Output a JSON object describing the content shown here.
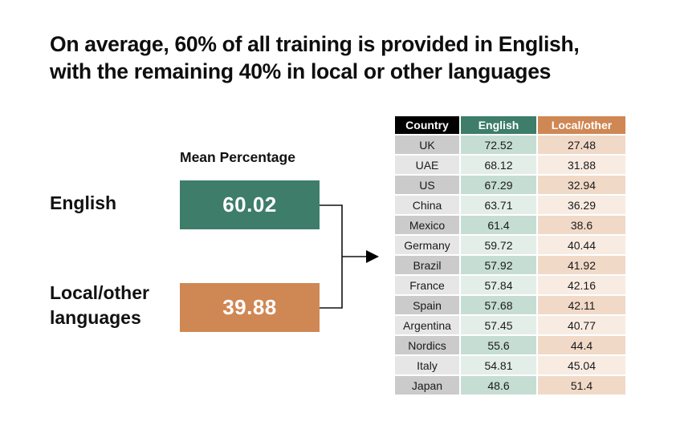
{
  "title": {
    "line1": "On average, 60% of all training is provided in English,",
    "line2": "with the remaining 40% in local or other languages"
  },
  "summary": {
    "header": "Mean Percentage",
    "rows": [
      {
        "label_lines": [
          "English"
        ],
        "value": "60.02",
        "color": "#3d7d6a"
      },
      {
        "label_lines": [
          "Local/other",
          "languages"
        ],
        "value": "39.88",
        "color": "#cf8754"
      }
    ],
    "connector_icon": "arrow-right-icon"
  },
  "table": {
    "columns": [
      {
        "label": "Country",
        "header_color": "#000000"
      },
      {
        "label": "English",
        "header_color": "#3d7d6a"
      },
      {
        "label": "Local/other",
        "header_color": "#cf8754"
      }
    ],
    "row_colors": {
      "country_dark": "#cbcbcb",
      "country_light": "#e6e6e6",
      "english_dark": "#c6ddd4",
      "english_light": "#e3eee9",
      "local_dark": "#f1d9c8",
      "local_light": "#f8ebe2"
    },
    "rows": [
      {
        "country": "UK",
        "english": "72.52",
        "local": "27.48"
      },
      {
        "country": "UAE",
        "english": "68.12",
        "local": "31.88"
      },
      {
        "country": "US",
        "english": "67.29",
        "local": "32.94"
      },
      {
        "country": "China",
        "english": "63.71",
        "local": "36.29"
      },
      {
        "country": "Mexico",
        "english": "61.4",
        "local": "38.6"
      },
      {
        "country": "Germany",
        "english": "59.72",
        "local": "40.44"
      },
      {
        "country": "Brazil",
        "english": "57.92",
        "local": "41.92"
      },
      {
        "country": "France",
        "english": "57.84",
        "local": "42.16"
      },
      {
        "country": "Spain",
        "english": "57.68",
        "local": "42.11"
      },
      {
        "country": "Argentina",
        "english": "57.45",
        "local": "40.77"
      },
      {
        "country": "Nordics",
        "english": "55.6",
        "local": "44.4"
      },
      {
        "country": "Italy",
        "english": "54.81",
        "local": "45.04"
      },
      {
        "country": "Japan",
        "english": "48.6",
        "local": "51.4"
      }
    ]
  }
}
